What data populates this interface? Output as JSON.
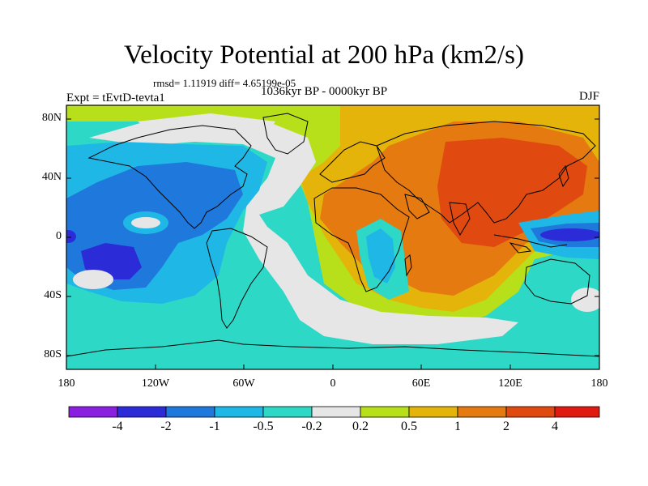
{
  "title": "Velocity Potential at 200 hPa (km2/s)",
  "stats": "rmsd= 1.11919 diff= 4.65199e-05",
  "left_label": "Expt = tEvtD-tevta1",
  "center_label": "1036kyr BP - 0000kyr BP",
  "right_label": "DJF",
  "lat_ticks": [
    "80N",
    "40N",
    "0",
    "40S",
    "80S"
  ],
  "lon_ticks": [
    "180",
    "120W",
    "60W",
    "0",
    "60E",
    "120E",
    "180"
  ],
  "colorbar": {
    "labels": [
      "-4",
      "-2",
      "-1",
      "-0.5",
      "-0.2",
      "0.2",
      "0.5",
      "1",
      "2",
      "4"
    ],
    "colors": [
      "#8b1fe0",
      "#2b2bd8",
      "#1f78dc",
      "#1fb8e6",
      "#2ed8c6",
      "#e6e6e6",
      "#b8e01a",
      "#e4b40a",
      "#e47a10",
      "#e04a10",
      "#e01a10"
    ]
  },
  "map_colors": {
    "very_low": "#2b2bd8",
    "low": "#1f78dc",
    "mid_low": "#1fb8e6",
    "slight_low": "#2ed8c6",
    "neutral": "#e6e6e6",
    "slight_high": "#b8e01a",
    "mid_high": "#e4b40a",
    "high": "#e47a10",
    "very_high": "#e04a10",
    "coast": "#000000"
  }
}
